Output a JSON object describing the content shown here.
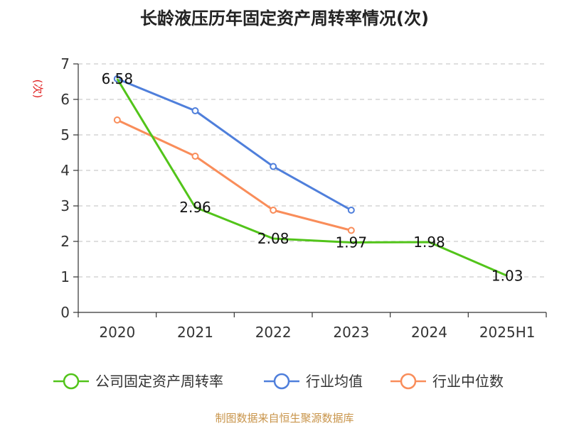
{
  "chart_data": {
    "type": "line",
    "title": "长龄液压历年固定资产周转率情况(次)",
    "ylabel": "(次)",
    "categories": [
      "2020",
      "2021",
      "2022",
      "2023",
      "2024",
      "2025H1"
    ],
    "ylim": [
      0,
      7
    ],
    "yticks": [
      "0",
      "1",
      "2",
      "3",
      "4",
      "5",
      "6",
      "7"
    ],
    "grid": true,
    "legend_position": "bottom",
    "series": [
      {
        "name": "公司固定资产周转率",
        "color": "#52c41a",
        "values": [
          6.58,
          2.96,
          2.08,
          1.97,
          1.98,
          1.03
        ],
        "labels": [
          "6.58",
          "2.96",
          "2.08",
          "1.97",
          "1.98",
          "1.03"
        ]
      },
      {
        "name": "行业均值",
        "color": "#4f7fdb",
        "values": [
          6.58,
          5.68,
          4.11,
          2.88,
          null,
          null
        ]
      },
      {
        "name": "行业中位数",
        "color": "#f98d5a",
        "values": [
          5.42,
          4.4,
          2.88,
          2.31,
          null,
          null
        ]
      }
    ]
  },
  "source": "制图数据来自恒生聚源数据库",
  "colors": {
    "source": "#c8944a",
    "ylabel": "#e02020",
    "grid": "#cccccc",
    "axis": "#333333"
  }
}
